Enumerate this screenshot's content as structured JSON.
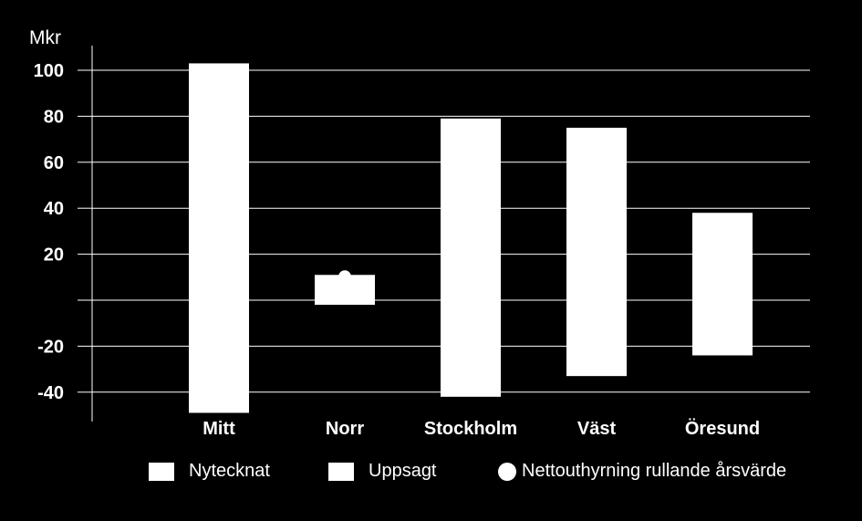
{
  "chart_data": {
    "type": "bar",
    "ylabel": "Mkr",
    "categories": [
      "Mitt",
      "Norr",
      "Stockholm",
      "Väst",
      "Öresund"
    ],
    "series": [
      {
        "name": "Nytecknat",
        "values": [
          103,
          11,
          79,
          75,
          38
        ]
      },
      {
        "name": "Uppsagt",
        "values": [
          -49,
          -2,
          -42,
          -33,
          -24
        ]
      },
      {
        "name": "Nettouthyrning rullande årsvärde",
        "values": [
          null,
          11,
          null,
          null,
          null
        ]
      }
    ],
    "ylim": [
      -50,
      110
    ],
    "yticks": [
      100,
      80,
      60,
      40,
      20,
      0,
      -20,
      -40
    ],
    "ytick_labels": [
      "100",
      "80",
      "60",
      "40",
      "20",
      "",
      "-20",
      "-40"
    ],
    "grid": true,
    "legend_position": "bottom",
    "colors": {
      "background": "#000000",
      "bars": "#ffffff",
      "grid": "#ffffff",
      "text": "#ffffff"
    }
  }
}
